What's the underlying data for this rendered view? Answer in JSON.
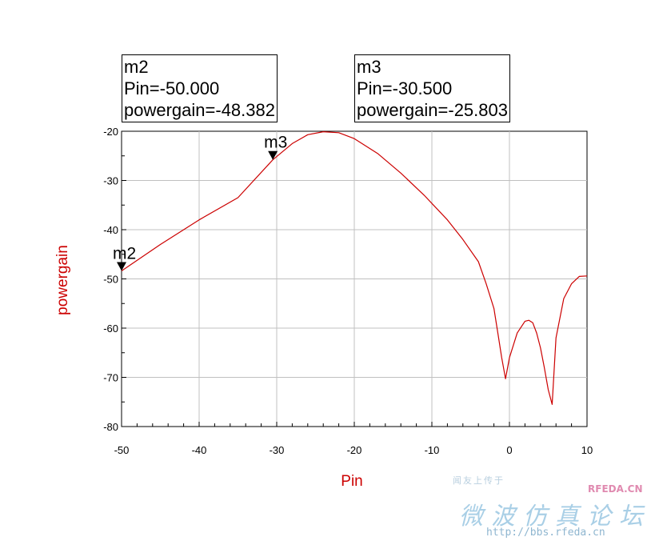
{
  "chart_data": {
    "type": "line",
    "title": "",
    "xlabel": "Pin",
    "ylabel": "powergain",
    "xlim": [
      -50,
      10
    ],
    "ylim": [
      -80,
      -20
    ],
    "x_ticks": [
      -50,
      -40,
      -30,
      -20,
      -10,
      0,
      10
    ],
    "y_ticks": [
      -20,
      -30,
      -40,
      -50,
      -60,
      -70,
      -80
    ],
    "grid": true,
    "series": [
      {
        "color": "#cc0000",
        "x": [
          -50,
          -45,
          -40,
          -35,
          -30.5,
          -28,
          -26,
          -24,
          -22,
          -20,
          -17,
          -14,
          -11,
          -8,
          -6,
          -4,
          -3,
          -2,
          -1.5,
          -1,
          -0.5,
          0,
          1,
          2,
          2.5,
          3,
          3.5,
          4,
          4.5,
          5,
          5.5,
          6,
          7,
          8,
          9,
          10
        ],
        "y": [
          -48.382,
          -43,
          -38,
          -33.5,
          -25.803,
          -22.5,
          -20.7,
          -20.1,
          -20.3,
          -21.5,
          -24.5,
          -28.5,
          -33,
          -38,
          -42,
          -46.5,
          -51,
          -56,
          -61,
          -66,
          -70.3,
          -66,
          -61,
          -58.6,
          -58.4,
          -58.9,
          -61,
          -64,
          -68,
          -72.5,
          -75.5,
          -62,
          -54,
          -51,
          -49.5,
          -49.4
        ]
      }
    ],
    "markers": [
      {
        "name": "m2",
        "label_x": "Pin=-50.000",
        "label_y": "powergain=-48.382",
        "x": -50.0,
        "y": -48.382
      },
      {
        "name": "m3",
        "label_x": "Pin=-30.500",
        "label_y": "powergain=-25.803",
        "x": -30.5,
        "y": -25.803
      }
    ]
  },
  "watermark": {
    "line1": "闻友上传于",
    "brand": "RFEDA.CN",
    "cn_title": "微波仿真论坛",
    "url": "http://bbs.rfeda.cn"
  }
}
